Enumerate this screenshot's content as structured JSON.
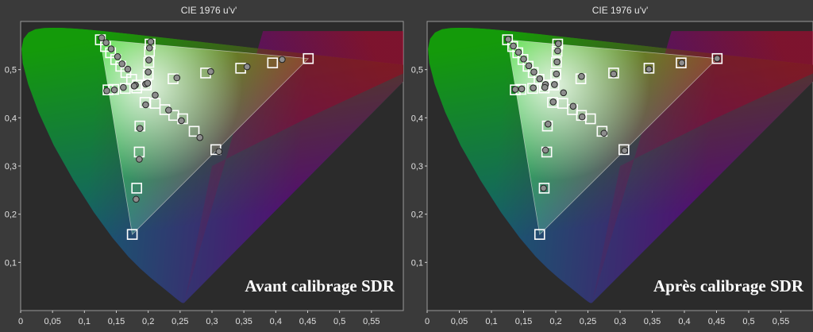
{
  "chart_data": [
    {
      "type": "scatter",
      "title": "CIE 1976 u'v'",
      "caption": "Avant calibrage SDR",
      "xlim": [
        0,
        0.6
      ],
      "ylim": [
        0,
        0.6
      ],
      "xticks": [
        "0",
        "0,05",
        "0,1",
        "0,15",
        "0,2",
        "0,25",
        "0,3",
        "0,35",
        "0,4",
        "0,45",
        "0,5",
        "0,55"
      ],
      "yticks": [
        "0,1",
        "0,2",
        "0,3",
        "0,4",
        "0,5"
      ],
      "gamut": {
        "red": [
          0.451,
          0.523
        ],
        "green": [
          0.125,
          0.562
        ],
        "blue": [
          0.175,
          0.158
        ]
      },
      "series": [
        {
          "marker": "square",
          "points": [
            [
              0.125,
              0.562
            ],
            [
              0.133,
              0.548
            ],
            [
              0.141,
              0.535
            ],
            [
              0.149,
              0.521
            ],
            [
              0.157,
              0.507
            ],
            [
              0.165,
              0.494
            ],
            [
              0.174,
              0.48
            ],
            [
              0.183,
              0.468
            ],
            [
              0.197,
              0.468
            ],
            [
              0.2,
              0.49
            ],
            [
              0.201,
              0.515
            ],
            [
              0.202,
              0.538
            ],
            [
              0.203,
              0.553
            ],
            [
              0.182,
              0.462
            ],
            [
              0.164,
              0.461
            ],
            [
              0.146,
              0.459
            ],
            [
              0.137,
              0.458
            ],
            [
              0.195,
              0.432
            ],
            [
              0.211,
              0.43
            ],
            [
              0.226,
              0.417
            ],
            [
              0.24,
              0.405
            ],
            [
              0.254,
              0.398
            ],
            [
              0.272,
              0.372
            ],
            [
              0.306,
              0.334
            ],
            [
              0.187,
              0.383
            ],
            [
              0.186,
              0.329
            ],
            [
              0.182,
              0.254
            ],
            [
              0.175,
              0.158
            ],
            [
              0.239,
              0.481
            ],
            [
              0.29,
              0.493
            ],
            [
              0.345,
              0.503
            ],
            [
              0.395,
              0.514
            ],
            [
              0.451,
              0.523
            ]
          ]
        },
        {
          "marker": "dot",
          "points": [
            [
              0.127,
              0.566
            ],
            [
              0.134,
              0.556
            ],
            [
              0.142,
              0.543
            ],
            [
              0.152,
              0.527
            ],
            [
              0.159,
              0.512
            ],
            [
              0.168,
              0.501
            ],
            [
              0.18,
              0.468
            ],
            [
              0.196,
              0.47
            ],
            [
              0.2,
              0.495
            ],
            [
              0.201,
              0.52
            ],
            [
              0.202,
              0.545
            ],
            [
              0.204,
              0.558
            ],
            [
              0.199,
              0.472
            ],
            [
              0.178,
              0.466
            ],
            [
              0.161,
              0.463
            ],
            [
              0.147,
              0.458
            ],
            [
              0.135,
              0.456
            ],
            [
              0.196,
              0.427
            ],
            [
              0.211,
              0.447
            ],
            [
              0.232,
              0.416
            ],
            [
              0.252,
              0.394
            ],
            [
              0.281,
              0.359
            ],
            [
              0.311,
              0.33
            ],
            [
              0.187,
              0.378
            ],
            [
              0.186,
              0.314
            ],
            [
              0.181,
              0.231
            ],
            [
              0.245,
              0.483
            ],
            [
              0.298,
              0.496
            ],
            [
              0.355,
              0.506
            ],
            [
              0.41,
              0.521
            ]
          ]
        }
      ]
    },
    {
      "type": "scatter",
      "title": "CIE 1976 u'v'",
      "caption": "Après calibrage SDR",
      "xlim": [
        0,
        0.6
      ],
      "ylim": [
        0,
        0.6
      ],
      "xticks": [
        "0",
        "0,05",
        "0,1",
        "0,15",
        "0,2",
        "0,25",
        "0,3",
        "0,35",
        "0,4",
        "0,45",
        "0,5",
        "0,55"
      ],
      "yticks": [
        "0,1",
        "0,2",
        "0,3",
        "0,4",
        "0,5"
      ],
      "gamut": {
        "red": [
          0.451,
          0.523
        ],
        "green": [
          0.125,
          0.562
        ],
        "blue": [
          0.175,
          0.158
        ]
      },
      "series": [
        {
          "marker": "square",
          "points": [
            [
              0.125,
              0.562
            ],
            [
              0.133,
              0.548
            ],
            [
              0.141,
              0.535
            ],
            [
              0.149,
              0.521
            ],
            [
              0.157,
              0.507
            ],
            [
              0.165,
              0.494
            ],
            [
              0.174,
              0.48
            ],
            [
              0.183,
              0.468
            ],
            [
              0.197,
              0.468
            ],
            [
              0.2,
              0.49
            ],
            [
              0.201,
              0.515
            ],
            [
              0.202,
              0.538
            ],
            [
              0.203,
              0.553
            ],
            [
              0.182,
              0.462
            ],
            [
              0.164,
              0.461
            ],
            [
              0.146,
              0.459
            ],
            [
              0.137,
              0.458
            ],
            [
              0.195,
              0.432
            ],
            [
              0.211,
              0.43
            ],
            [
              0.226,
              0.417
            ],
            [
              0.24,
              0.405
            ],
            [
              0.254,
              0.398
            ],
            [
              0.272,
              0.372
            ],
            [
              0.306,
              0.334
            ],
            [
              0.187,
              0.383
            ],
            [
              0.186,
              0.329
            ],
            [
              0.182,
              0.254
            ],
            [
              0.175,
              0.158
            ],
            [
              0.239,
              0.481
            ],
            [
              0.29,
              0.493
            ],
            [
              0.345,
              0.503
            ],
            [
              0.395,
              0.514
            ],
            [
              0.451,
              0.523
            ]
          ]
        },
        {
          "marker": "dot",
          "points": [
            [
              0.126,
              0.563
            ],
            [
              0.134,
              0.549
            ],
            [
              0.142,
              0.536
            ],
            [
              0.15,
              0.522
            ],
            [
              0.158,
              0.508
            ],
            [
              0.166,
              0.495
            ],
            [
              0.175,
              0.481
            ],
            [
              0.184,
              0.469
            ],
            [
              0.198,
              0.469
            ],
            [
              0.201,
              0.491
            ],
            [
              0.202,
              0.516
            ],
            [
              0.203,
              0.539
            ],
            [
              0.204,
              0.554
            ],
            [
              0.183,
              0.463
            ],
            [
              0.165,
              0.462
            ],
            [
              0.147,
              0.46
            ],
            [
              0.137,
              0.459
            ],
            [
              0.196,
              0.433
            ],
            [
              0.212,
              0.452
            ],
            [
              0.227,
              0.424
            ],
            [
              0.241,
              0.402
            ],
            [
              0.275,
              0.368
            ],
            [
              0.307,
              0.332
            ],
            [
              0.188,
              0.387
            ],
            [
              0.184,
              0.333
            ],
            [
              0.181,
              0.254
            ],
            [
              0.24,
              0.486
            ],
            [
              0.29,
              0.491
            ],
            [
              0.345,
              0.501
            ],
            [
              0.396,
              0.514
            ],
            [
              0.451,
              0.523
            ]
          ]
        }
      ]
    }
  ]
}
